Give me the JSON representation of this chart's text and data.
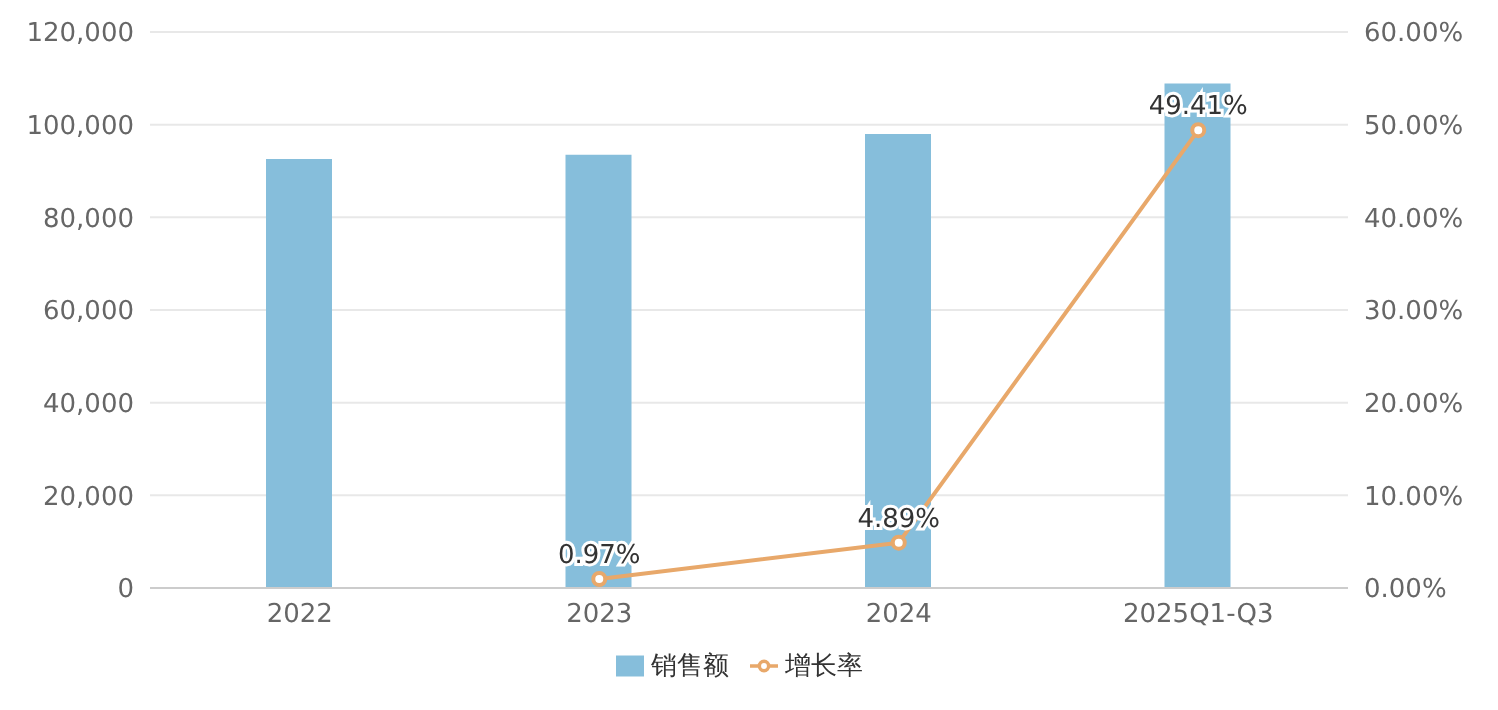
{
  "chart_data": {
    "type": "bar",
    "categories": [
      "2022",
      "2023",
      "2024",
      "2025Q1-Q3"
    ],
    "series": [
      {
        "name": "销售额",
        "color": "#86bedb",
        "values": [
          92600,
          93500,
          98000,
          108900
        ]
      },
      {
        "name": "增长率",
        "type": "line",
        "axis": "y2",
        "color": "#e8a86a",
        "values": [
          null,
          0.97,
          4.89,
          49.41
        ],
        "value_labels": [
          null,
          "0.97%",
          "4.89%",
          "49.41%"
        ],
        "marker": "circle"
      }
    ],
    "ylim": [
      0,
      120000
    ],
    "yticks": [
      {
        "value": 0,
        "label": "0"
      },
      {
        "value": 20000,
        "label": "20,000"
      },
      {
        "value": 40000,
        "label": "40,000"
      },
      {
        "value": 60000,
        "label": "60,000"
      },
      {
        "value": 80000,
        "label": "80,000"
      },
      {
        "value": 100000,
        "label": "100,000"
      },
      {
        "value": 120000,
        "label": "120,000"
      }
    ],
    "y2lim": [
      0,
      60
    ],
    "y2ticks": [
      {
        "value": 0,
        "label": "0.00%"
      },
      {
        "value": 10,
        "label": "10.00%"
      },
      {
        "value": 20,
        "label": "20.00%"
      },
      {
        "value": 30,
        "label": "30.00%"
      },
      {
        "value": 40,
        "label": "40.00%"
      },
      {
        "value": 50,
        "label": "50.00%"
      },
      {
        "value": 60,
        "label": "60.00%"
      }
    ],
    "grid": "y",
    "legend": "bottom"
  }
}
